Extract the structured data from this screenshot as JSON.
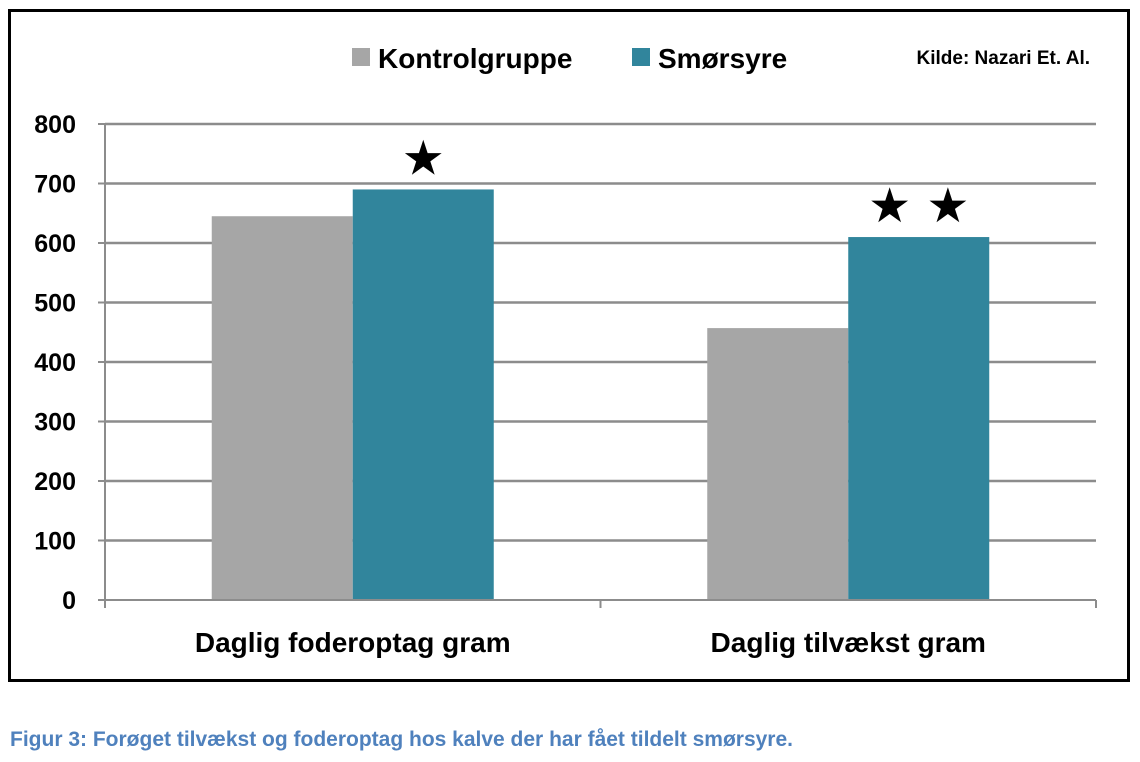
{
  "chart_data": {
    "type": "bar",
    "categories": [
      "Daglig foderoptag gram",
      "Daglig tilvækst gram"
    ],
    "series": [
      {
        "name": "Kontrolgruppe",
        "values": [
          645,
          457
        ],
        "color": "#a6a6a6"
      },
      {
        "name": "Smørsyre",
        "values": [
          690,
          610
        ],
        "color": "#31859c"
      }
    ],
    "ylim": [
      0,
      800
    ],
    "yticks": [
      0,
      100,
      200,
      300,
      400,
      500,
      600,
      700,
      800
    ],
    "grid": true,
    "legend": "top",
    "annotations": [
      {
        "category": 0,
        "series": 1,
        "text": "★"
      },
      {
        "category": 1,
        "series": 1,
        "text": "★ ★"
      }
    ],
    "source_note": "Kilde: Nazari  Et. Al."
  },
  "caption": "Figur 3: Forøget tilvækst og foderoptag hos kalve der har fået tildelt smørsyre."
}
